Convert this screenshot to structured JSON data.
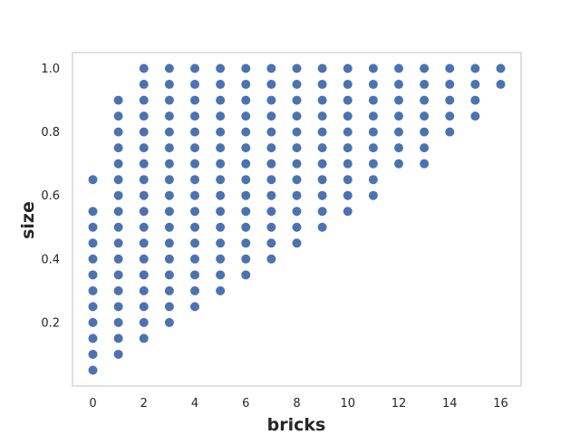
{
  "chart_data": {
    "type": "scatter",
    "title": "",
    "xlabel": "bricks",
    "ylabel": "size",
    "xlim": [
      -0.8,
      16.8
    ],
    "ylim": [
      0.0,
      1.05
    ],
    "xticks": [
      0,
      2,
      4,
      6,
      8,
      10,
      12,
      14,
      16
    ],
    "yticks": [
      0.2,
      0.4,
      0.6,
      0.8,
      1.0
    ],
    "ytick_labels": [
      "0.2",
      "0.4",
      "0.6",
      "0.8",
      "1.0"
    ],
    "grid": false,
    "marker_color": "#4c72b0",
    "series": [
      {
        "points": [
          [
            0,
            0.05
          ],
          [
            0,
            0.1
          ],
          [
            0,
            0.15
          ],
          [
            0,
            0.2
          ],
          [
            0,
            0.25
          ],
          [
            0,
            0.3
          ],
          [
            0,
            0.35
          ],
          [
            0,
            0.4
          ],
          [
            0,
            0.45
          ],
          [
            0,
            0.5
          ],
          [
            0,
            0.55
          ],
          [
            0,
            0.65
          ],
          [
            1,
            0.1
          ],
          [
            1,
            0.15
          ],
          [
            1,
            0.2
          ],
          [
            1,
            0.25
          ],
          [
            1,
            0.3
          ],
          [
            1,
            0.35
          ],
          [
            1,
            0.4
          ],
          [
            1,
            0.45
          ],
          [
            1,
            0.5
          ],
          [
            1,
            0.55
          ],
          [
            1,
            0.6
          ],
          [
            1,
            0.65
          ],
          [
            1,
            0.7
          ],
          [
            1,
            0.75
          ],
          [
            1,
            0.8
          ],
          [
            1,
            0.85
          ],
          [
            1,
            0.9
          ],
          [
            2,
            0.15
          ],
          [
            2,
            0.2
          ],
          [
            2,
            0.25
          ],
          [
            2,
            0.3
          ],
          [
            2,
            0.35
          ],
          [
            2,
            0.4
          ],
          [
            2,
            0.45
          ],
          [
            2,
            0.5
          ],
          [
            2,
            0.55
          ],
          [
            2,
            0.6
          ],
          [
            2,
            0.65
          ],
          [
            2,
            0.7
          ],
          [
            2,
            0.75
          ],
          [
            2,
            0.8
          ],
          [
            2,
            0.85
          ],
          [
            2,
            0.9
          ],
          [
            2,
            0.95
          ],
          [
            2,
            1.0
          ],
          [
            3,
            0.2
          ],
          [
            3,
            0.25
          ],
          [
            3,
            0.3
          ],
          [
            3,
            0.35
          ],
          [
            3,
            0.4
          ],
          [
            3,
            0.45
          ],
          [
            3,
            0.5
          ],
          [
            3,
            0.55
          ],
          [
            3,
            0.6
          ],
          [
            3,
            0.65
          ],
          [
            3,
            0.7
          ],
          [
            3,
            0.75
          ],
          [
            3,
            0.8
          ],
          [
            3,
            0.85
          ],
          [
            3,
            0.9
          ],
          [
            3,
            0.95
          ],
          [
            3,
            1.0
          ],
          [
            4,
            0.25
          ],
          [
            4,
            0.3
          ],
          [
            4,
            0.35
          ],
          [
            4,
            0.4
          ],
          [
            4,
            0.45
          ],
          [
            4,
            0.5
          ],
          [
            4,
            0.55
          ],
          [
            4,
            0.6
          ],
          [
            4,
            0.65
          ],
          [
            4,
            0.7
          ],
          [
            4,
            0.75
          ],
          [
            4,
            0.8
          ],
          [
            4,
            0.85
          ],
          [
            4,
            0.9
          ],
          [
            4,
            0.95
          ],
          [
            4,
            1.0
          ],
          [
            5,
            0.3
          ],
          [
            5,
            0.35
          ],
          [
            5,
            0.4
          ],
          [
            5,
            0.45
          ],
          [
            5,
            0.5
          ],
          [
            5,
            0.55
          ],
          [
            5,
            0.6
          ],
          [
            5,
            0.65
          ],
          [
            5,
            0.7
          ],
          [
            5,
            0.75
          ],
          [
            5,
            0.8
          ],
          [
            5,
            0.85
          ],
          [
            5,
            0.9
          ],
          [
            5,
            0.95
          ],
          [
            5,
            1.0
          ],
          [
            6,
            0.35
          ],
          [
            6,
            0.4
          ],
          [
            6,
            0.45
          ],
          [
            6,
            0.5
          ],
          [
            6,
            0.55
          ],
          [
            6,
            0.6
          ],
          [
            6,
            0.65
          ],
          [
            6,
            0.7
          ],
          [
            6,
            0.75
          ],
          [
            6,
            0.8
          ],
          [
            6,
            0.85
          ],
          [
            6,
            0.9
          ],
          [
            6,
            0.95
          ],
          [
            6,
            1.0
          ],
          [
            7,
            0.4
          ],
          [
            7,
            0.45
          ],
          [
            7,
            0.5
          ],
          [
            7,
            0.55
          ],
          [
            7,
            0.6
          ],
          [
            7,
            0.65
          ],
          [
            7,
            0.7
          ],
          [
            7,
            0.75
          ],
          [
            7,
            0.8
          ],
          [
            7,
            0.85
          ],
          [
            7,
            0.9
          ],
          [
            7,
            0.95
          ],
          [
            7,
            1.0
          ],
          [
            8,
            0.45
          ],
          [
            8,
            0.5
          ],
          [
            8,
            0.55
          ],
          [
            8,
            0.6
          ],
          [
            8,
            0.65
          ],
          [
            8,
            0.7
          ],
          [
            8,
            0.75
          ],
          [
            8,
            0.8
          ],
          [
            8,
            0.85
          ],
          [
            8,
            0.9
          ],
          [
            8,
            0.95
          ],
          [
            8,
            1.0
          ],
          [
            9,
            0.5
          ],
          [
            9,
            0.55
          ],
          [
            9,
            0.6
          ],
          [
            9,
            0.65
          ],
          [
            9,
            0.7
          ],
          [
            9,
            0.75
          ],
          [
            9,
            0.8
          ],
          [
            9,
            0.85
          ],
          [
            9,
            0.9
          ],
          [
            9,
            0.95
          ],
          [
            9,
            1.0
          ],
          [
            10,
            0.55
          ],
          [
            10,
            0.6
          ],
          [
            10,
            0.65
          ],
          [
            10,
            0.7
          ],
          [
            10,
            0.75
          ],
          [
            10,
            0.8
          ],
          [
            10,
            0.85
          ],
          [
            10,
            0.9
          ],
          [
            10,
            0.95
          ],
          [
            10,
            1.0
          ],
          [
            11,
            0.6
          ],
          [
            11,
            0.65
          ],
          [
            11,
            0.7
          ],
          [
            11,
            0.75
          ],
          [
            11,
            0.8
          ],
          [
            11,
            0.85
          ],
          [
            11,
            0.9
          ],
          [
            11,
            0.95
          ],
          [
            11,
            1.0
          ],
          [
            12,
            0.7
          ],
          [
            12,
            0.75
          ],
          [
            12,
            0.8
          ],
          [
            12,
            0.85
          ],
          [
            12,
            0.9
          ],
          [
            12,
            0.95
          ],
          [
            12,
            1.0
          ],
          [
            13,
            0.7
          ],
          [
            13,
            0.75
          ],
          [
            13,
            0.8
          ],
          [
            13,
            0.85
          ],
          [
            13,
            0.9
          ],
          [
            13,
            0.95
          ],
          [
            13,
            1.0
          ],
          [
            14,
            0.8
          ],
          [
            14,
            0.85
          ],
          [
            14,
            0.9
          ],
          [
            14,
            0.95
          ],
          [
            14,
            1.0
          ],
          [
            15,
            0.85
          ],
          [
            15,
            0.9
          ],
          [
            15,
            0.95
          ],
          [
            15,
            1.0
          ],
          [
            16,
            0.95
          ],
          [
            16,
            1.0
          ]
        ]
      }
    ]
  }
}
